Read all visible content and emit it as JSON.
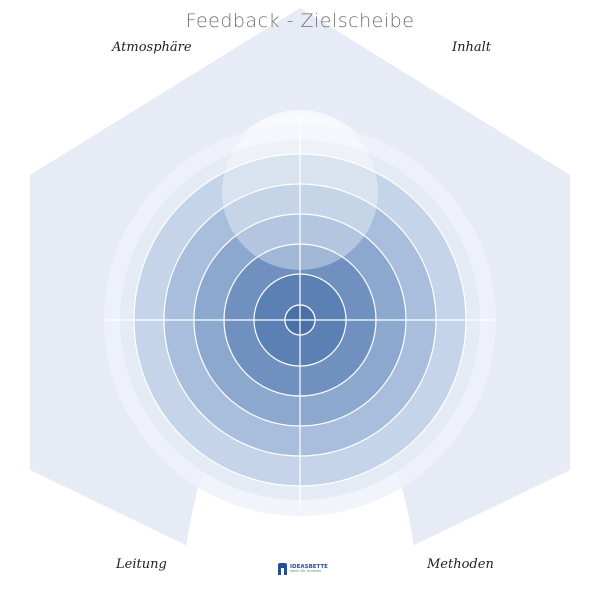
{
  "title": "Feedback - Zielscheibe",
  "labels": {
    "top_left": "Atmosphäre",
    "top_right": "Inhalt",
    "bottom_left": "Leitung",
    "bottom_right": "Methoden"
  },
  "logo": {
    "name": "IDEASBETTE",
    "tagline": "Ideen für Anderes"
  },
  "colors": {
    "hexagon": "#e6ebf5",
    "halo": "#f6f8fc",
    "rings": [
      "#c5d4e9",
      "#a8bedc",
      "#8ca8ce",
      "#7091bf",
      "#5b81b4",
      "#4c74aa",
      "#4a71a7"
    ]
  },
  "target": {
    "ring_count": 6,
    "sectors": 4
  }
}
